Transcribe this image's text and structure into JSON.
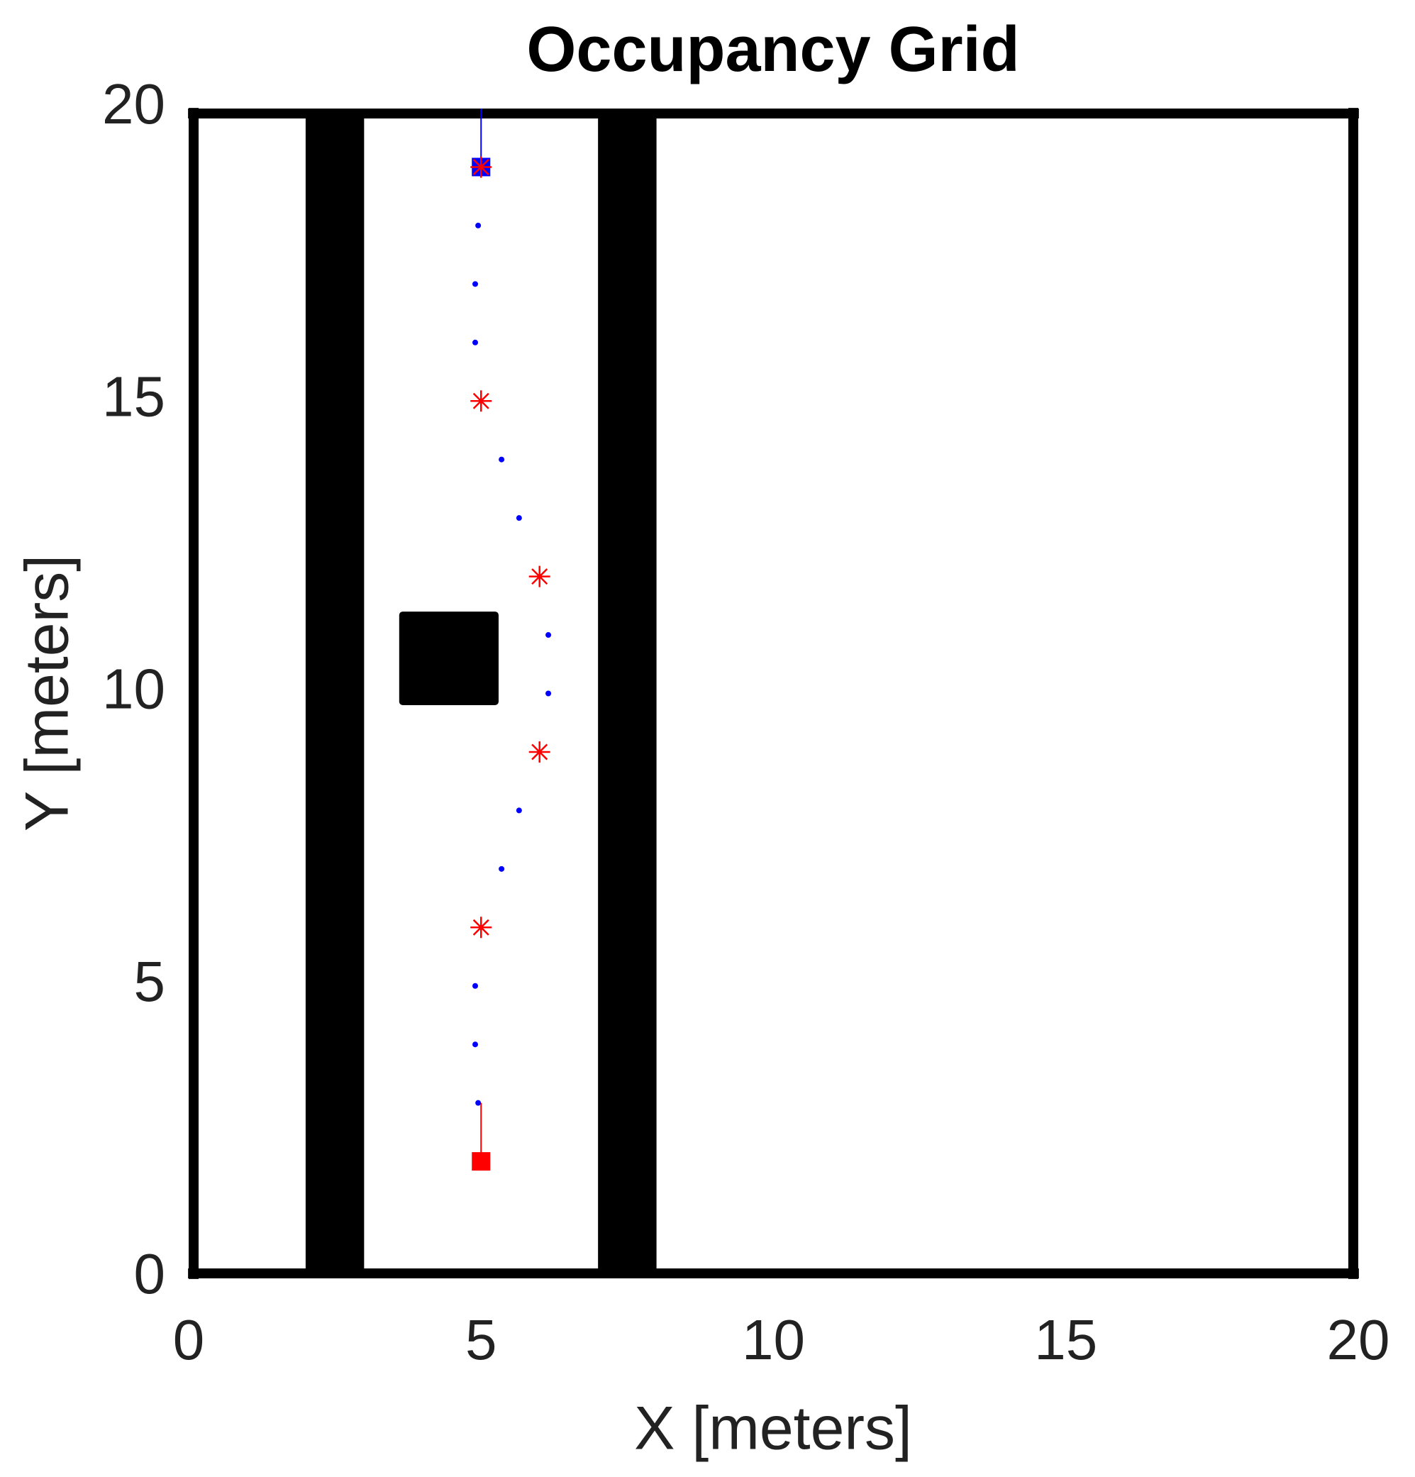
{
  "chart_data": {
    "type": "occupancy",
    "title": "Occupancy Grid",
    "x_label": "X [meters]",
    "y_label": "Y [meters]",
    "xlim": [
      0,
      20
    ],
    "ylim": [
      0,
      20
    ],
    "xticks": [
      0,
      5,
      10,
      15,
      20
    ],
    "yticks": [
      0,
      5,
      10,
      15,
      20
    ],
    "obstacle_color": "#000000",
    "obstacles": [
      {
        "x": [
          2,
          3
        ],
        "y": [
          0,
          20
        ]
      },
      {
        "x": [
          7,
          8
        ],
        "y": [
          0,
          20
        ]
      },
      {
        "x": [
          3.6,
          5.3
        ],
        "y": [
          9.8,
          11.4
        ]
      }
    ],
    "series": [
      {
        "color": "#ff0000",
        "line": true,
        "x": [
          5,
          5
        ],
        "y": [
          2,
          3
        ]
      },
      {
        "color": "#0000ff",
        "line": true,
        "x": [
          5,
          5
        ],
        "y": [
          19,
          20
        ]
      },
      {
        "color": "#0000ff",
        "marker": "dot",
        "x": [
          4.95,
          4.9,
          4.9,
          5.35,
          5.65,
          6.15,
          6.15,
          5.65,
          5.35,
          4.9,
          4.9,
          4.95
        ],
        "y": [
          3,
          4,
          5,
          7,
          8,
          10,
          11,
          13,
          14,
          16,
          17,
          18
        ]
      },
      {
        "color": "#ff0000",
        "marker": "square",
        "x": [
          5
        ],
        "y": [
          2
        ]
      },
      {
        "color": "#0000ff",
        "marker": "square",
        "x": [
          5
        ],
        "y": [
          19
        ]
      },
      {
        "color": "#ff0000",
        "marker": "star",
        "x": [
          5,
          6,
          6,
          5,
          5
        ],
        "y": [
          6,
          9,
          12,
          15,
          19
        ]
      }
    ]
  }
}
